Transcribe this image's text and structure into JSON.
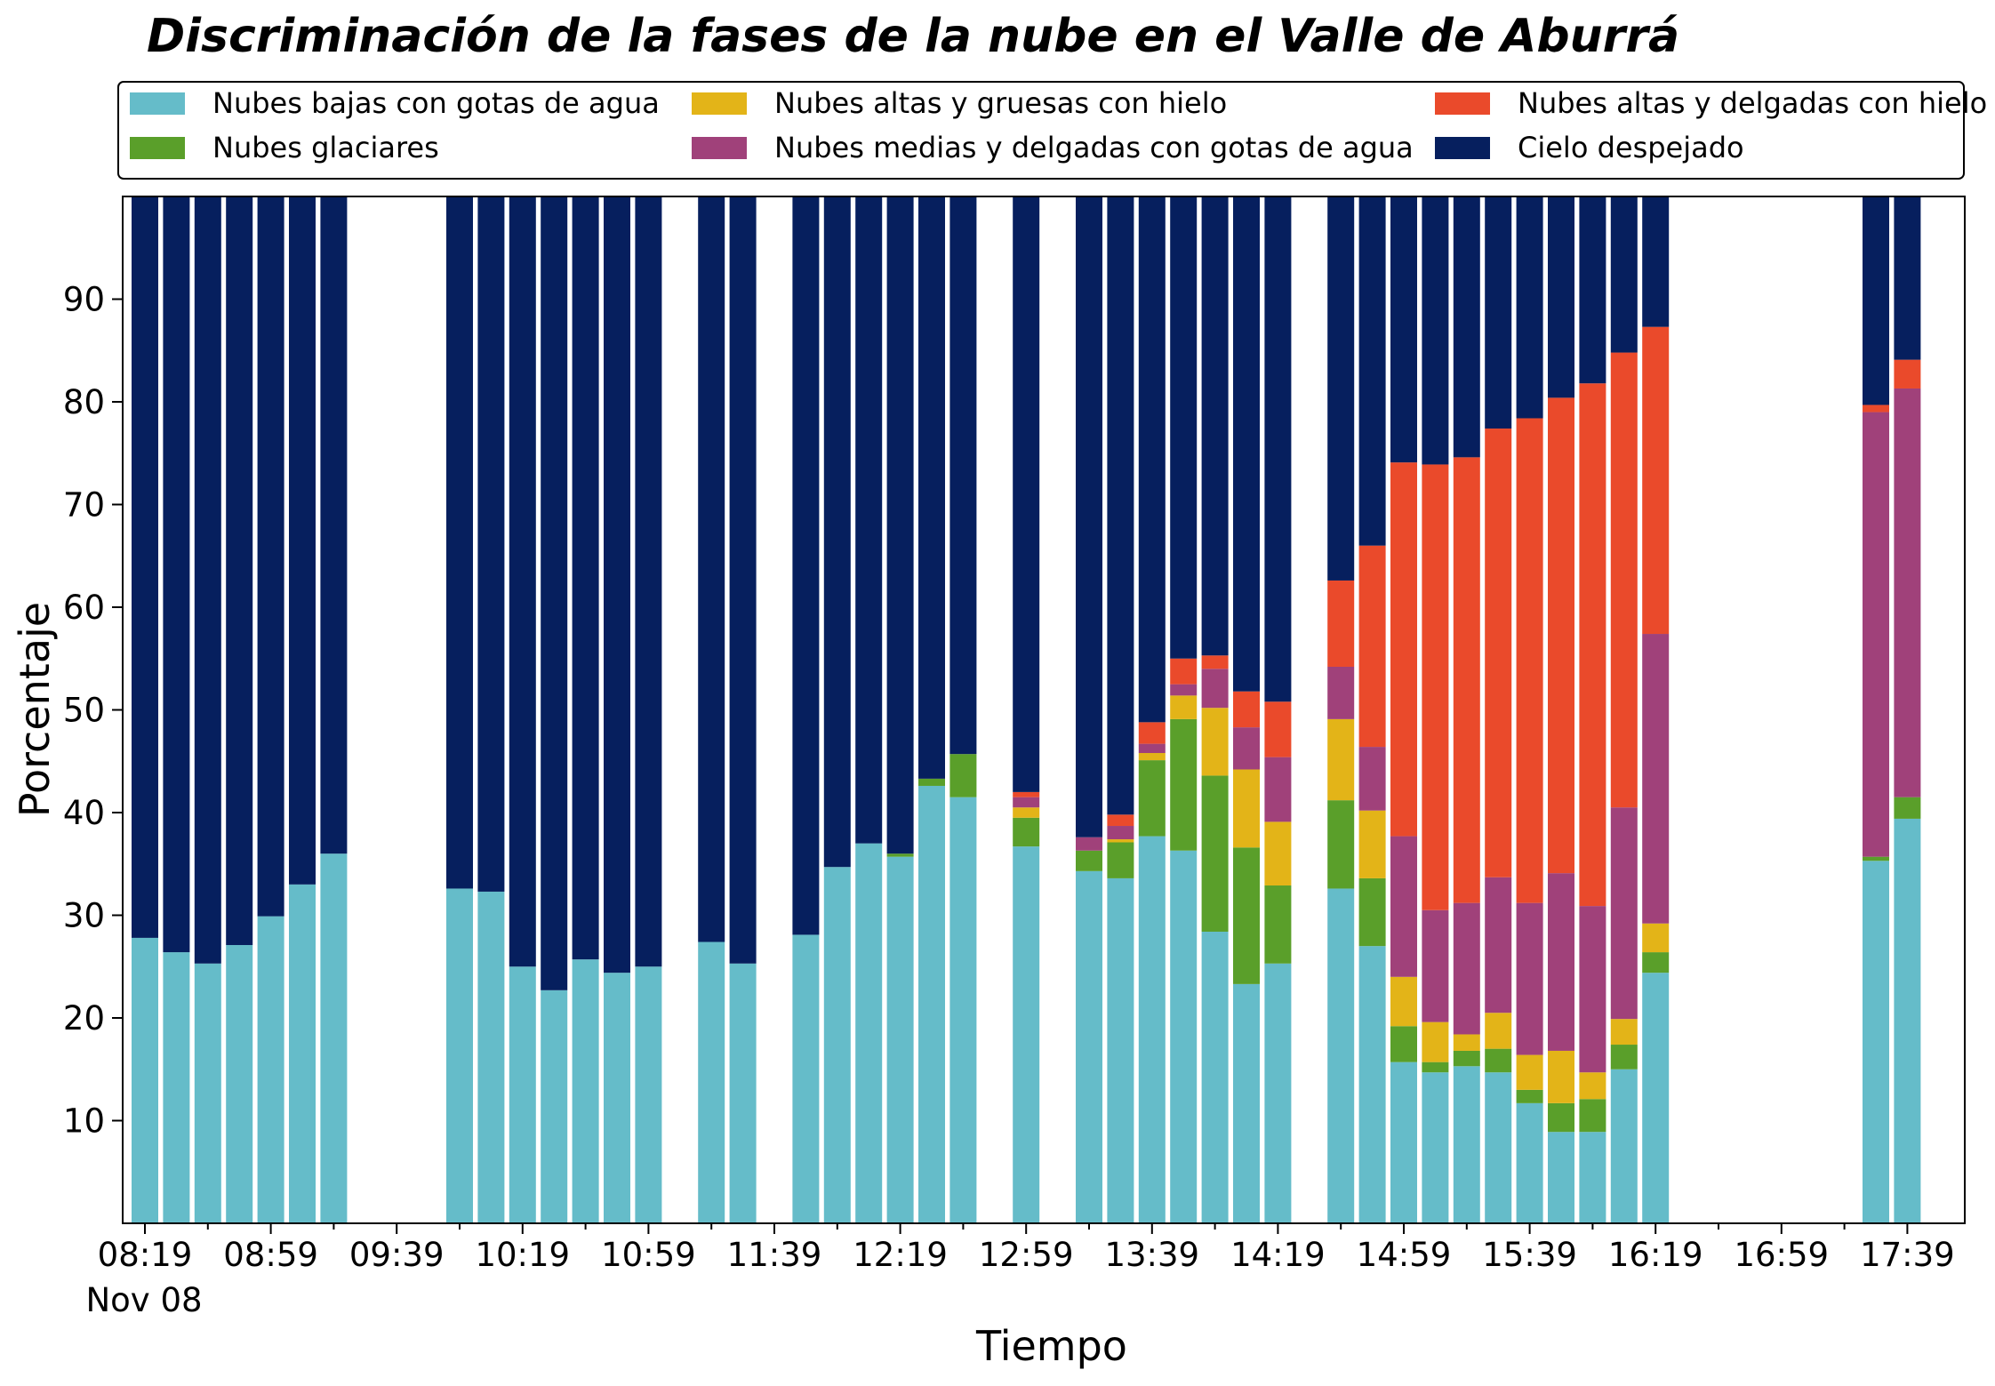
{
  "chart_data": {
    "type": "bar",
    "stacked": true,
    "title": "Discriminación de la fases de la nube en el Valle de Aburrá",
    "xlabel": "Tiempo",
    "ylabel": "Porcentaje",
    "ylim": [
      0,
      100
    ],
    "yticks": [
      10,
      20,
      30,
      40,
      50,
      60,
      70,
      80,
      90
    ],
    "date_label": "Nov 08",
    "xticks": [
      "08:19",
      "08:59",
      "09:39",
      "10:19",
      "10:59",
      "11:39",
      "12:19",
      "12:59",
      "13:39",
      "14:19",
      "14:59",
      "15:39",
      "16:19",
      "16:59",
      "17:39"
    ],
    "time_start": "08:19",
    "interval_minutes": 10,
    "legend_position": "top",
    "grid": false,
    "series": [
      {
        "name": "Nubes bajas con gotas de agua",
        "color": "#65bcc9"
      },
      {
        "name": "Nubes glaciares",
        "color": "#5a9f2a"
      },
      {
        "name": "Nubes altas y gruesas con hielo",
        "color": "#e3b418"
      },
      {
        "name": "Nubes medias y delgadas con gotas de agua",
        "color": "#a0417a"
      },
      {
        "name": "Nubes altas y delgadas con hielo",
        "color": "#ea4a2b"
      },
      {
        "name": "Cielo despejado",
        "color": "#061f5e"
      }
    ],
    "bars": [
      {
        "time": "08:19",
        "values": [
          27.8,
          0,
          0,
          0,
          0,
          72.2
        ]
      },
      {
        "time": "08:29",
        "values": [
          26.4,
          0,
          0,
          0,
          0,
          73.6
        ]
      },
      {
        "time": "08:39",
        "values": [
          25.3,
          0,
          0,
          0,
          0,
          74.7
        ]
      },
      {
        "time": "08:49",
        "values": [
          27.1,
          0,
          0,
          0,
          0,
          72.9
        ]
      },
      {
        "time": "08:59",
        "values": [
          29.9,
          0,
          0,
          0,
          0,
          70.1
        ]
      },
      {
        "time": "09:09",
        "values": [
          33.0,
          0,
          0,
          0,
          0,
          67.0
        ]
      },
      {
        "time": "09:19",
        "values": [
          36.0,
          0,
          0,
          0,
          0,
          64.0
        ]
      },
      {
        "time": "09:59",
        "values": [
          32.6,
          0,
          0,
          0,
          0,
          67.4
        ]
      },
      {
        "time": "10:09",
        "values": [
          32.3,
          0,
          0,
          0,
          0,
          67.7
        ]
      },
      {
        "time": "10:19",
        "values": [
          25.0,
          0,
          0,
          0,
          0,
          75.0
        ]
      },
      {
        "time": "10:29",
        "values": [
          22.7,
          0,
          0,
          0,
          0,
          77.3
        ]
      },
      {
        "time": "10:39",
        "values": [
          25.7,
          0,
          0,
          0,
          0,
          74.3
        ]
      },
      {
        "time": "10:49",
        "values": [
          24.4,
          0,
          0,
          0,
          0,
          75.6
        ]
      },
      {
        "time": "10:59",
        "values": [
          25.0,
          0,
          0,
          0,
          0,
          75.0
        ]
      },
      {
        "time": "11:19",
        "values": [
          27.4,
          0,
          0,
          0,
          0,
          72.6
        ]
      },
      {
        "time": "11:29",
        "values": [
          25.3,
          0,
          0,
          0,
          0,
          74.7
        ]
      },
      {
        "time": "11:49",
        "values": [
          28.1,
          0,
          0,
          0,
          0,
          71.9
        ]
      },
      {
        "time": "11:59",
        "values": [
          34.7,
          0,
          0,
          0,
          0,
          65.3
        ]
      },
      {
        "time": "12:09",
        "values": [
          37.0,
          0,
          0,
          0,
          0,
          63.0
        ]
      },
      {
        "time": "12:19",
        "values": [
          35.7,
          0.3,
          0,
          0,
          0,
          64.0
        ]
      },
      {
        "time": "12:29",
        "values": [
          42.6,
          0.7,
          0,
          0,
          0,
          56.7
        ]
      },
      {
        "time": "12:39",
        "values": [
          41.5,
          4.2,
          0,
          0,
          0,
          54.3
        ]
      },
      {
        "time": "12:59",
        "values": [
          36.7,
          2.8,
          1.0,
          1.0,
          0.5,
          58.0
        ]
      },
      {
        "time": "13:19",
        "values": [
          34.3,
          2.0,
          0,
          1.3,
          0,
          62.4
        ]
      },
      {
        "time": "13:29",
        "values": [
          33.6,
          3.5,
          0.3,
          1.3,
          1.1,
          60.2
        ]
      },
      {
        "time": "13:39",
        "values": [
          37.7,
          7.4,
          0.7,
          0.9,
          2.1,
          51.2
        ]
      },
      {
        "time": "13:49",
        "values": [
          36.3,
          12.8,
          2.3,
          1.1,
          2.5,
          45.0
        ]
      },
      {
        "time": "13:59",
        "values": [
          28.4,
          15.2,
          6.6,
          3.8,
          1.3,
          44.7
        ]
      },
      {
        "time": "14:09",
        "values": [
          23.3,
          13.3,
          7.6,
          4.1,
          3.5,
          48.2
        ]
      },
      {
        "time": "14:19",
        "values": [
          25.3,
          7.6,
          6.2,
          6.3,
          5.4,
          49.2
        ]
      },
      {
        "time": "14:39",
        "values": [
          32.6,
          8.6,
          7.9,
          5.1,
          8.4,
          37.4
        ]
      },
      {
        "time": "14:49",
        "values": [
          27.0,
          6.6,
          6.6,
          6.2,
          19.6,
          34.0
        ]
      },
      {
        "time": "14:59",
        "values": [
          15.7,
          3.5,
          4.8,
          13.7,
          36.4,
          25.9
        ]
      },
      {
        "time": "15:09",
        "values": [
          14.7,
          1.0,
          3.9,
          10.9,
          43.4,
          26.1
        ]
      },
      {
        "time": "15:19",
        "values": [
          15.3,
          1.5,
          1.6,
          12.8,
          43.4,
          25.4
        ]
      },
      {
        "time": "15:29",
        "values": [
          14.7,
          2.3,
          3.5,
          13.2,
          43.7,
          22.6
        ]
      },
      {
        "time": "15:39",
        "values": [
          11.7,
          1.3,
          3.4,
          14.8,
          47.2,
          21.6
        ]
      },
      {
        "time": "15:49",
        "values": [
          8.9,
          2.8,
          5.1,
          17.3,
          46.3,
          19.6
        ]
      },
      {
        "time": "15:59",
        "values": [
          8.9,
          3.2,
          2.6,
          16.2,
          50.9,
          18.2
        ]
      },
      {
        "time": "16:09",
        "values": [
          15.0,
          2.4,
          2.5,
          20.6,
          44.3,
          15.2
        ]
      },
      {
        "time": "16:19",
        "values": [
          24.4,
          2.0,
          2.8,
          28.2,
          29.9,
          12.7
        ]
      },
      {
        "time": "17:29",
        "values": [
          35.3,
          0.4,
          0,
          43.3,
          0.7,
          20.3
        ]
      },
      {
        "time": "17:39",
        "values": [
          39.4,
          2.1,
          0,
          39.8,
          2.8,
          15.9
        ]
      }
    ]
  }
}
